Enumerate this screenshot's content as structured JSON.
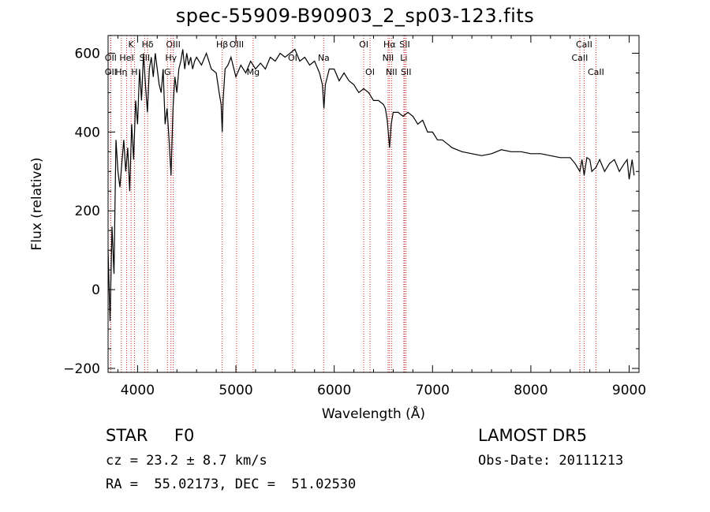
{
  "chart_data": {
    "type": "line",
    "title": "spec-55909-B90903_2_sp03-123.fits",
    "xlabel": "Wavelength (Å)",
    "ylabel": "Flux (relative)",
    "xlim": [
      3700,
      9100
    ],
    "ylim": [
      -210,
      645
    ],
    "xticks": [
      4000,
      5000,
      6000,
      7000,
      8000,
      9000
    ],
    "yticks": [
      -200,
      0,
      200,
      400,
      600
    ],
    "series": [
      {
        "x": [
          3700,
          3720,
          3740,
          3760,
          3780,
          3800,
          3820,
          3840,
          3860,
          3880,
          3900,
          3920,
          3940,
          3960,
          3980,
          4000,
          4020,
          4040,
          4060,
          4080,
          4100,
          4120,
          4140,
          4160,
          4180,
          4200,
          4220,
          4240,
          4260,
          4280,
          4300,
          4320,
          4340,
          4360,
          4380,
          4400,
          4420,
          4440,
          4460,
          4480,
          4500,
          4520,
          4540,
          4560,
          4580,
          4600,
          4650,
          4700,
          4750,
          4800,
          4830,
          4850,
          4861,
          4870,
          4890,
          4920,
          4950,
          4980,
          5000,
          5050,
          5100,
          5150,
          5200,
          5250,
          5300,
          5350,
          5400,
          5450,
          5500,
          5550,
          5600,
          5650,
          5700,
          5750,
          5800,
          5850,
          5880,
          5895,
          5910,
          5950,
          6000,
          6050,
          6100,
          6150,
          6200,
          6250,
          6300,
          6350,
          6400,
          6450,
          6500,
          6520,
          6540,
          6563,
          6580,
          6600,
          6650,
          6700,
          6750,
          6800,
          6850,
          6900,
          6950,
          7000,
          7050,
          7100,
          7150,
          7200,
          7250,
          7300,
          7400,
          7500,
          7600,
          7700,
          7800,
          7900,
          8000,
          8100,
          8200,
          8300,
          8400,
          8450,
          8498,
          8520,
          8542,
          8570,
          8600,
          8620,
          8662,
          8700,
          8750,
          8800,
          8850,
          8900,
          8950,
          8980,
          9000,
          9030,
          9050
        ],
        "y": [
          100,
          -80,
          160,
          40,
          380,
          300,
          260,
          320,
          380,
          300,
          360,
          250,
          420,
          330,
          480,
          420,
          560,
          480,
          600,
          520,
          450,
          560,
          590,
          540,
          600,
          560,
          520,
          500,
          560,
          420,
          460,
          380,
          290,
          460,
          540,
          500,
          560,
          580,
          610,
          560,
          600,
          570,
          590,
          560,
          580,
          590,
          570,
          600,
          560,
          550,
          500,
          470,
          400,
          480,
          560,
          570,
          590,
          560,
          540,
          570,
          550,
          580,
          560,
          575,
          560,
          590,
          580,
          600,
          590,
          600,
          610,
          580,
          590,
          570,
          580,
          550,
          520,
          460,
          520,
          560,
          560,
          530,
          550,
          530,
          520,
          500,
          510,
          500,
          480,
          480,
          470,
          460,
          430,
          360,
          420,
          450,
          450,
          440,
          450,
          440,
          420,
          430,
          400,
          400,
          380,
          380,
          370,
          360,
          355,
          350,
          345,
          340,
          345,
          355,
          350,
          350,
          345,
          345,
          340,
          335,
          335,
          320,
          300,
          330,
          290,
          335,
          330,
          300,
          310,
          330,
          300,
          320,
          330,
          300,
          320,
          330,
          280,
          330,
          290
        ]
      }
    ],
    "lines": [
      {
        "label": "Hβ",
        "x": 4861,
        "row": 1
      },
      {
        "label": "K",
        "x": 3934,
        "row": 1
      },
      {
        "label": "Hδ",
        "x": 4102,
        "row": 1
      },
      {
        "label": "OIII",
        "x": 4363,
        "row": 1
      },
      {
        "label": "OIII",
        "x": 5007,
        "row": 1
      },
      {
        "label": "OI",
        "x": 6300,
        "row": 1
      },
      {
        "label": "Hα",
        "x": 6563,
        "row": 1
      },
      {
        "label": "SII",
        "x": 6717,
        "row": 1
      },
      {
        "label": "CaII",
        "x": 8542,
        "row": 1
      },
      {
        "label": "OII",
        "x": 3727,
        "row": 2
      },
      {
        "label": "HeI",
        "x": 3889,
        "row": 2
      },
      {
        "label": "SII",
        "x": 4072,
        "row": 2
      },
      {
        "label": "Hγ",
        "x": 4340,
        "row": 2
      },
      {
        "label": "OI",
        "x": 5577,
        "row": 2
      },
      {
        "label": "Na",
        "x": 5893,
        "row": 2
      },
      {
        "label": "NII",
        "x": 6548,
        "row": 2
      },
      {
        "label": "Li",
        "x": 6708,
        "row": 2
      },
      {
        "label": "CaII",
        "x": 8498,
        "row": 2
      },
      {
        "label": "OII",
        "x": 3727,
        "row": 3
      },
      {
        "label": "Hη",
        "x": 3835,
        "row": 3
      },
      {
        "label": "H",
        "x": 3968,
        "row": 3
      },
      {
        "label": "G",
        "x": 4304,
        "row": 3
      },
      {
        "label": "Mg",
        "x": 5175,
        "row": 3
      },
      {
        "label": "OI",
        "x": 6364,
        "row": 3
      },
      {
        "label": "NII",
        "x": 6583,
        "row": 3
      },
      {
        "label": "SII",
        "x": 6731,
        "row": 3
      },
      {
        "label": "CaII",
        "x": 8662,
        "row": 3
      }
    ],
    "grid": false
  },
  "info": {
    "class_label": "STAR     F0",
    "survey": "LAMOST DR5",
    "redshift": "cz = 23.2 ± 8.7 km/s",
    "obs_date": "Obs-Date: 20111213",
    "coords": "RA =  55.02173, DEC =  51.02530"
  }
}
